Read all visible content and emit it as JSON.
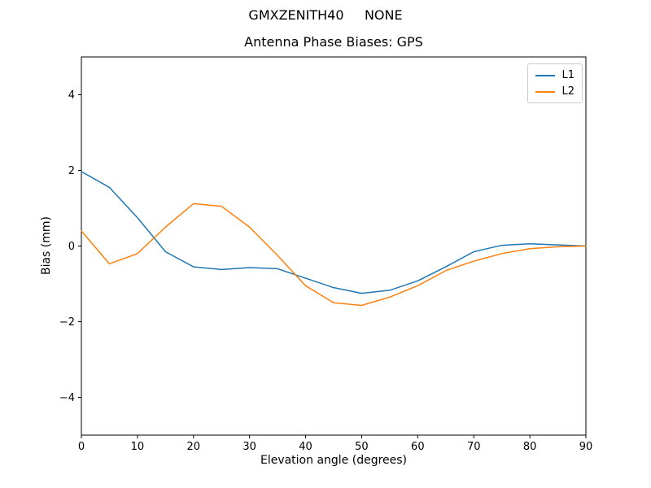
{
  "figure": {
    "suptitle": "GMXZENITH40     NONE",
    "title": "Antenna Phase Biases: GPS"
  },
  "chart_data": {
    "type": "line",
    "suptitle": "GMXZENITH40     NONE",
    "title": "Antenna Phase Biases: GPS",
    "xlabel": "Elevation angle (degrees)",
    "ylabel": "Bias (mm)",
    "xlim": [
      0,
      90
    ],
    "ylim": [
      -5,
      5
    ],
    "xticks": [
      0,
      10,
      20,
      30,
      40,
      50,
      60,
      70,
      80,
      90
    ],
    "yticks": [
      -4,
      -2,
      0,
      2,
      4
    ],
    "grid": false,
    "legend_position": "upper right",
    "x": [
      0,
      5,
      10,
      15,
      20,
      25,
      30,
      35,
      40,
      45,
      50,
      55,
      60,
      65,
      70,
      75,
      80,
      85,
      90
    ],
    "series": [
      {
        "name": "L1",
        "color": "#1f77b4",
        "values": [
          1.97,
          1.55,
          0.75,
          -0.15,
          -0.55,
          -0.62,
          -0.57,
          -0.6,
          -0.85,
          -1.1,
          -1.25,
          -1.17,
          -0.92,
          -0.55,
          -0.15,
          0.02,
          0.06,
          0.03,
          0.0
        ]
      },
      {
        "name": "L2",
        "color": "#ff7f0e",
        "values": [
          0.4,
          -0.47,
          -0.2,
          0.5,
          1.12,
          1.05,
          0.5,
          -0.25,
          -1.05,
          -1.5,
          -1.57,
          -1.35,
          -1.05,
          -0.65,
          -0.4,
          -0.2,
          -0.07,
          -0.02,
          0.0
        ]
      }
    ]
  }
}
